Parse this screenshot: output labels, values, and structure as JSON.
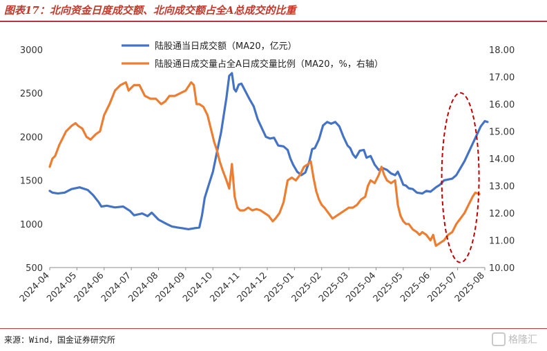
{
  "title": "图表17：北向资金日度成交额、北向成交额占全A总成交的比重",
  "source": "来源：Wind，国金证券研究所",
  "watermark": "格隆汇",
  "chart_data": {
    "type": "line",
    "x_ticks": [
      "2024-04",
      "2024-05",
      "2024-06",
      "2024-07",
      "2024-08",
      "2024-09",
      "2024-10",
      "2024-11",
      "2024-12",
      "2025-01",
      "2025-02",
      "2025-03",
      "2025-04",
      "2025-05",
      "2025-06",
      "2025-07",
      "2025-08"
    ],
    "y_left": {
      "min": 500,
      "max": 3000,
      "ticks": [
        500,
        1000,
        1500,
        2000,
        2500,
        3000
      ]
    },
    "y_right": {
      "min": 10,
      "max": 18,
      "ticks": [
        "10.00",
        "11.00",
        "12.00",
        "13.00",
        "14.00",
        "15.00",
        "16.00",
        "17.00",
        "18.00"
      ]
    },
    "grid": false,
    "legend_position": "top-center",
    "series": [
      {
        "name": "陆股通当日成交额（MA20，亿元）",
        "axis": "left",
        "color": "#4472c4",
        "points": [
          [
            0.0,
            1380
          ],
          [
            0.1,
            1360
          ],
          [
            0.3,
            1350
          ],
          [
            0.55,
            1360
          ],
          [
            0.8,
            1400
          ],
          [
            1.1,
            1420
          ],
          [
            1.4,
            1390
          ],
          [
            1.6,
            1330
          ],
          [
            1.8,
            1250
          ],
          [
            1.9,
            1200
          ],
          [
            2.1,
            1210
          ],
          [
            2.4,
            1190
          ],
          [
            2.7,
            1200
          ],
          [
            2.95,
            1150
          ],
          [
            3.1,
            1100
          ],
          [
            3.4,
            1120
          ],
          [
            3.6,
            1090
          ],
          [
            3.75,
            1130
          ],
          [
            4.0,
            1050
          ],
          [
            4.3,
            1000
          ],
          [
            4.5,
            970
          ],
          [
            4.7,
            960
          ],
          [
            4.9,
            950
          ],
          [
            5.1,
            940
          ],
          [
            5.3,
            950
          ],
          [
            5.5,
            960
          ],
          [
            5.6,
            1100
          ],
          [
            5.7,
            1300
          ],
          [
            5.85,
            1450
          ],
          [
            6.0,
            1600
          ],
          [
            6.1,
            1750
          ],
          [
            6.2,
            1900
          ],
          [
            6.3,
            2050
          ],
          [
            6.4,
            2250
          ],
          [
            6.5,
            2450
          ],
          [
            6.6,
            2700
          ],
          [
            6.7,
            2730
          ],
          [
            6.78,
            2550
          ],
          [
            6.85,
            2520
          ],
          [
            6.95,
            2600
          ],
          [
            7.05,
            2610
          ],
          [
            7.2,
            2520
          ],
          [
            7.35,
            2430
          ],
          [
            7.5,
            2350
          ],
          [
            7.65,
            2200
          ],
          [
            7.8,
            2100
          ],
          [
            7.95,
            2000
          ],
          [
            8.1,
            1980
          ],
          [
            8.25,
            1990
          ],
          [
            8.4,
            1900
          ],
          [
            8.6,
            1890
          ],
          [
            8.75,
            1850
          ],
          [
            8.85,
            1750
          ],
          [
            8.95,
            1680
          ],
          [
            9.1,
            1600
          ],
          [
            9.25,
            1560
          ],
          [
            9.4,
            1590
          ],
          [
            9.55,
            1720
          ],
          [
            9.65,
            1860
          ],
          [
            9.75,
            1870
          ],
          [
            9.9,
            1970
          ],
          [
            10.05,
            2130
          ],
          [
            10.2,
            2170
          ],
          [
            10.35,
            2150
          ],
          [
            10.5,
            2170
          ],
          [
            10.65,
            2120
          ],
          [
            10.8,
            2000
          ],
          [
            10.95,
            1900
          ],
          [
            11.05,
            1870
          ],
          [
            11.15,
            1800
          ],
          [
            11.25,
            1760
          ],
          [
            11.4,
            1840
          ],
          [
            11.55,
            1850
          ],
          [
            11.65,
            1760
          ],
          [
            11.8,
            1780
          ],
          [
            11.95,
            1680
          ],
          [
            12.1,
            1620
          ],
          [
            12.25,
            1640
          ],
          [
            12.4,
            1620
          ],
          [
            12.55,
            1580
          ],
          [
            12.7,
            1560
          ],
          [
            12.8,
            1600
          ],
          [
            12.9,
            1530
          ],
          [
            13.0,
            1450
          ],
          [
            13.1,
            1440
          ],
          [
            13.2,
            1410
          ],
          [
            13.35,
            1400
          ],
          [
            13.5,
            1360
          ],
          [
            13.7,
            1350
          ],
          [
            13.85,
            1380
          ],
          [
            14.0,
            1370
          ],
          [
            14.2,
            1420
          ],
          [
            14.35,
            1450
          ],
          [
            14.5,
            1500
          ],
          [
            14.65,
            1510
          ],
          [
            14.8,
            1520
          ],
          [
            14.95,
            1560
          ],
          [
            15.1,
            1640
          ],
          [
            15.25,
            1720
          ],
          [
            15.4,
            1820
          ],
          [
            15.55,
            1920
          ],
          [
            15.7,
            2020
          ],
          [
            15.85,
            2120
          ],
          [
            16.0,
            2180
          ],
          [
            16.1,
            2170
          ]
        ]
      },
      {
        "name": "陆股通日成交量占全A日成交量比例（MA20，%，右轴）",
        "axis": "right",
        "color": "#ed7d31",
        "points": [
          [
            0.0,
            13.7
          ],
          [
            0.1,
            14.0
          ],
          [
            0.2,
            14.1
          ],
          [
            0.35,
            14.5
          ],
          [
            0.5,
            14.8
          ],
          [
            0.6,
            15.0
          ],
          [
            0.8,
            15.2
          ],
          [
            0.95,
            15.3
          ],
          [
            1.05,
            15.2
          ],
          [
            1.2,
            15.1
          ],
          [
            1.35,
            14.8
          ],
          [
            1.5,
            14.7
          ],
          [
            1.7,
            14.9
          ],
          [
            1.85,
            15.0
          ],
          [
            2.0,
            15.6
          ],
          [
            2.2,
            16.0
          ],
          [
            2.4,
            16.5
          ],
          [
            2.6,
            16.7
          ],
          [
            2.8,
            16.8
          ],
          [
            2.9,
            16.5
          ],
          [
            3.0,
            16.6
          ],
          [
            3.1,
            16.7
          ],
          [
            3.3,
            16.7
          ],
          [
            3.5,
            16.3
          ],
          [
            3.7,
            16.2
          ],
          [
            3.9,
            16.2
          ],
          [
            4.1,
            16.0
          ],
          [
            4.25,
            16.1
          ],
          [
            4.4,
            16.3
          ],
          [
            4.6,
            16.3
          ],
          [
            4.8,
            16.4
          ],
          [
            5.0,
            16.5
          ],
          [
            5.2,
            16.8
          ],
          [
            5.3,
            16.7
          ],
          [
            5.4,
            16.0
          ],
          [
            5.5,
            16.0
          ],
          [
            5.65,
            15.9
          ],
          [
            5.8,
            15.6
          ],
          [
            5.95,
            15.0
          ],
          [
            6.05,
            14.6
          ],
          [
            6.15,
            14.3
          ],
          [
            6.25,
            13.9
          ],
          [
            6.35,
            13.6
          ],
          [
            6.5,
            13.2
          ],
          [
            6.6,
            12.9
          ],
          [
            6.7,
            13.8
          ],
          [
            6.8,
            12.6
          ],
          [
            6.9,
            12.2
          ],
          [
            7.0,
            12.1
          ],
          [
            7.15,
            12.1
          ],
          [
            7.3,
            12.2
          ],
          [
            7.45,
            12.1
          ],
          [
            7.6,
            12.15
          ],
          [
            7.75,
            12.1
          ],
          [
            7.9,
            12.0
          ],
          [
            8.05,
            11.9
          ],
          [
            8.2,
            11.7
          ],
          [
            8.3,
            11.8
          ],
          [
            8.45,
            12.0
          ],
          [
            8.6,
            12.4
          ],
          [
            8.75,
            13.2
          ],
          [
            8.9,
            13.3
          ],
          [
            9.05,
            13.2
          ],
          [
            9.2,
            13.4
          ],
          [
            9.35,
            13.7
          ],
          [
            9.5,
            13.8
          ],
          [
            9.6,
            13.9
          ],
          [
            9.7,
            13.3
          ],
          [
            9.8,
            12.8
          ],
          [
            9.9,
            12.5
          ],
          [
            10.0,
            12.3
          ],
          [
            10.1,
            12.2
          ],
          [
            10.25,
            12.0
          ],
          [
            10.4,
            11.8
          ],
          [
            10.55,
            11.9
          ],
          [
            10.7,
            12.0
          ],
          [
            10.85,
            12.1
          ],
          [
            11.0,
            12.2
          ],
          [
            11.15,
            12.2
          ],
          [
            11.3,
            12.3
          ],
          [
            11.45,
            12.5
          ],
          [
            11.6,
            12.6
          ],
          [
            11.7,
            13.0
          ],
          [
            11.8,
            13.2
          ],
          [
            11.95,
            13.1
          ],
          [
            12.1,
            13.4
          ],
          [
            12.2,
            13.7
          ],
          [
            12.3,
            13.4
          ],
          [
            12.4,
            13.2
          ],
          [
            12.55,
            13.1
          ],
          [
            12.7,
            13.2
          ],
          [
            12.8,
            12.3
          ],
          [
            12.9,
            11.9
          ],
          [
            13.0,
            11.7
          ],
          [
            13.1,
            11.6
          ],
          [
            13.2,
            11.6
          ],
          [
            13.35,
            11.4
          ],
          [
            13.5,
            11.3
          ],
          [
            13.6,
            11.2
          ],
          [
            13.7,
            11.3
          ],
          [
            13.85,
            11.2
          ],
          [
            14.0,
            11.0
          ],
          [
            14.1,
            11.2
          ],
          [
            14.2,
            10.8
          ],
          [
            14.35,
            10.9
          ],
          [
            14.5,
            11.0
          ],
          [
            14.65,
            11.2
          ],
          [
            14.8,
            11.3
          ],
          [
            14.95,
            11.6
          ],
          [
            15.1,
            11.8
          ],
          [
            15.25,
            12.0
          ],
          [
            15.4,
            12.3
          ],
          [
            15.55,
            12.6
          ],
          [
            15.65,
            12.75
          ],
          [
            15.8,
            12.7
          ]
        ]
      }
    ],
    "annotation": {
      "shape": "dashed-ellipse",
      "color": "#c00000",
      "x_center": 15.1,
      "y_center_right_axis": 13.3
    }
  }
}
